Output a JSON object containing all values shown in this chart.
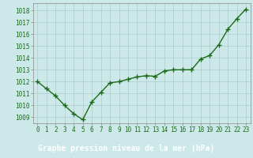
{
  "x": [
    0,
    1,
    2,
    3,
    4,
    5,
    6,
    7,
    8,
    9,
    10,
    11,
    12,
    13,
    14,
    15,
    16,
    17,
    18,
    19,
    20,
    21,
    22,
    23
  ],
  "y": [
    1012.0,
    1011.4,
    1010.8,
    1010.0,
    1009.3,
    1008.8,
    1010.3,
    1011.1,
    1011.9,
    1012.0,
    1012.2,
    1012.4,
    1012.5,
    1012.45,
    1012.9,
    1013.0,
    1013.0,
    1013.0,
    1013.9,
    1014.2,
    1015.1,
    1016.4,
    1017.3,
    1018.1
  ],
  "line_color": "#1a6b1a",
  "marker_color": "#1a6b1a",
  "bg_color": "#cce8e8",
  "plot_bg_color": "#cce8e8",
  "grid_color": "#aacccc",
  "title": "Graphe pression niveau de la mer (hPa)",
  "title_bg_color": "#2d7a2d",
  "title_text_color": "#ffffff",
  "ylim_min": 1008.5,
  "ylim_max": 1018.6,
  "xlim_min": -0.5,
  "xlim_max": 23.5,
  "yticks": [
    1009,
    1010,
    1011,
    1012,
    1013,
    1014,
    1015,
    1016,
    1017,
    1018
  ],
  "xticks": [
    0,
    1,
    2,
    3,
    4,
    5,
    6,
    7,
    8,
    9,
    10,
    11,
    12,
    13,
    14,
    15,
    16,
    17,
    18,
    19,
    20,
    21,
    22,
    23
  ],
  "tick_fontsize": 5.5,
  "title_fontsize": 7,
  "title_fontweight": "bold",
  "marker_size": 3,
  "line_width": 1.0,
  "spine_color": "#888888"
}
